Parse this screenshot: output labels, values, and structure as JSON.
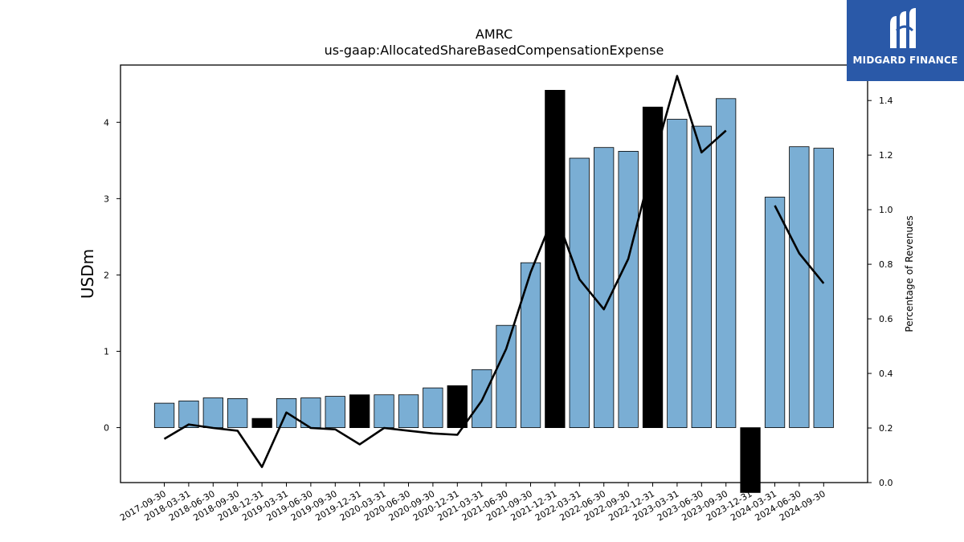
{
  "chart_data": {
    "type": "bar",
    "title": "AMRC",
    "subtitle": "us-gaap:AllocatedShareBasedCompensationExpense",
    "ylabel": "USDm",
    "y2label": "Percentage of Revenues",
    "categories": [
      "2017-09-30",
      "2018-03-31",
      "2018-06-30",
      "2018-09-30",
      "2018-12-31",
      "2019-03-31",
      "2019-06-30",
      "2019-09-30",
      "2019-12-31",
      "2020-03-31",
      "2020-06-30",
      "2020-09-30",
      "2020-12-31",
      "2021-03-31",
      "2021-06-30",
      "2021-09-30",
      "2021-12-31",
      "2022-03-31",
      "2022-06-30",
      "2022-09-30",
      "2022-12-31",
      "2023-03-31",
      "2023-06-30",
      "2023-09-30",
      "2023-12-31",
      "2024-03-31",
      "2024-06-30",
      "2024-09-30"
    ],
    "series": [
      {
        "type": "bar",
        "values": [
          0.32,
          0.35,
          0.39,
          0.38,
          0.12,
          0.38,
          0.39,
          0.41,
          0.43,
          0.43,
          0.43,
          0.52,
          0.55,
          0.76,
          1.34,
          2.16,
          4.42,
          3.53,
          3.67,
          3.62,
          4.2,
          4.04,
          3.95,
          4.31,
          -0.85,
          3.02,
          3.68,
          3.66
        ],
        "highlight": [
          false,
          false,
          false,
          false,
          true,
          false,
          false,
          false,
          true,
          false,
          false,
          false,
          true,
          false,
          false,
          false,
          true,
          false,
          false,
          false,
          true,
          false,
          false,
          false,
          true,
          false,
          false,
          false
        ]
      },
      {
        "type": "line",
        "axis": "right",
        "values": [
          0.16,
          0.213,
          0.2,
          0.19,
          0.057,
          0.257,
          0.2,
          0.195,
          0.14,
          0.2,
          0.19,
          0.18,
          0.175,
          0.3,
          0.49,
          0.77,
          0.99,
          0.745,
          0.635,
          0.82,
          1.17,
          1.49,
          1.21,
          1.29,
          null,
          1.015,
          0.84,
          0.73
        ]
      }
    ],
    "ylim": [
      -0.72,
      4.75
    ],
    "yticks": [
      0,
      1,
      2,
      3,
      4
    ],
    "y2lim": [
      0.0,
      1.53
    ],
    "y2ticks": [
      "0.0",
      "0.2",
      "0.4",
      "0.6",
      "0.8",
      "1.0",
      "1.2",
      "1.4"
    ],
    "colors": {
      "bar": "#7aaed4",
      "highlight": "#000000",
      "line": "#000000"
    },
    "legend": "none",
    "grid": false
  },
  "brand": {
    "name": "MIDGARD FINANCE",
    "icon": "midgard-logo-icon",
    "color": "#2a59a8"
  }
}
